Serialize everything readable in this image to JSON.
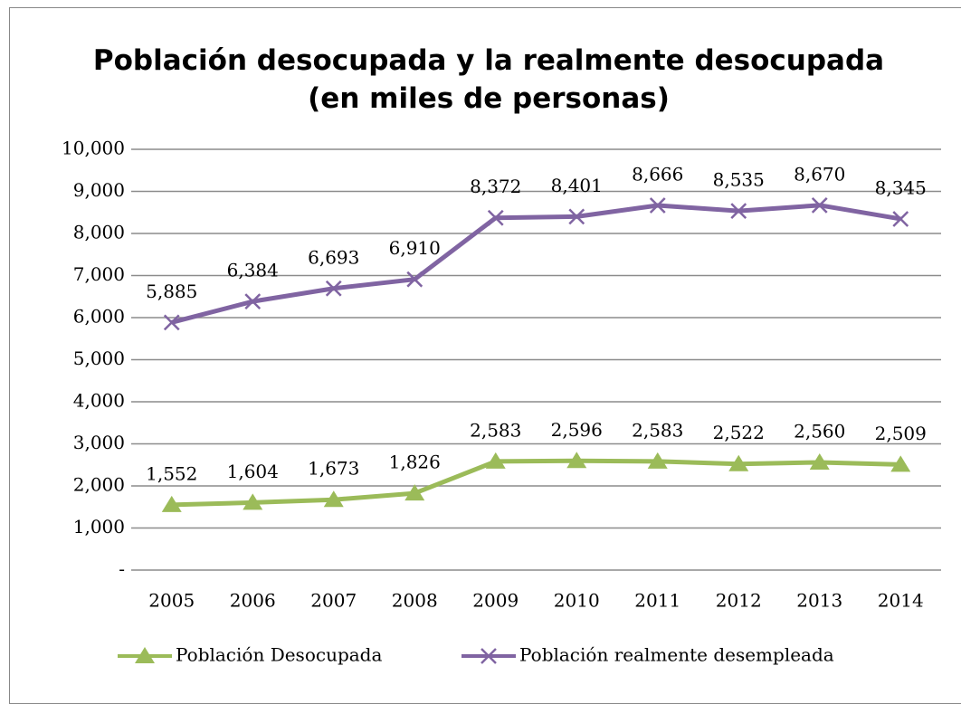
{
  "chart_data": {
    "type": "line",
    "title": "Población desocupada y la realmente desocupada (en miles de personas)",
    "categories": [
      "2005",
      "2006",
      "2007",
      "2008",
      "2009",
      "2010",
      "2011",
      "2012",
      "2013",
      "2014"
    ],
    "series": [
      {
        "name": "Población Desocupada",
        "color": "#9bbb59",
        "marker": "triangle",
        "values": [
          1552,
          1604,
          1673,
          1826,
          2583,
          2596,
          2583,
          2522,
          2560,
          2509
        ],
        "value_labels": [
          "1,552",
          "1,604",
          "1,673",
          "1,826",
          "2,583",
          "2,596",
          "2,583",
          "2,522",
          "2,560",
          "2,509"
        ]
      },
      {
        "name": "Población realmente desempleada",
        "color": "#8064a2",
        "marker": "x",
        "values": [
          5885,
          6384,
          6693,
          6910,
          8372,
          8401,
          8666,
          8535,
          8670,
          8345
        ],
        "value_labels": [
          "5,885",
          "6,384",
          "6,693",
          "6,910",
          "8,372",
          "8,401",
          "8,666",
          "8,535",
          "8,670",
          "8,345"
        ]
      }
    ],
    "ylim": [
      0,
      10000
    ],
    "yticks": [
      {
        "value": 0,
        "label": "-"
      },
      {
        "value": 1000,
        "label": "1,000"
      },
      {
        "value": 2000,
        "label": "2,000"
      },
      {
        "value": 3000,
        "label": "3,000"
      },
      {
        "value": 4000,
        "label": "4,000"
      },
      {
        "value": 5000,
        "label": "5,000"
      },
      {
        "value": 6000,
        "label": "6,000"
      },
      {
        "value": 7000,
        "label": "7,000"
      },
      {
        "value": 8000,
        "label": "8,000"
      },
      {
        "value": 9000,
        "label": "9,000"
      },
      {
        "value": 10000,
        "label": "10,000"
      }
    ],
    "grid": true,
    "legend": "bottom"
  }
}
